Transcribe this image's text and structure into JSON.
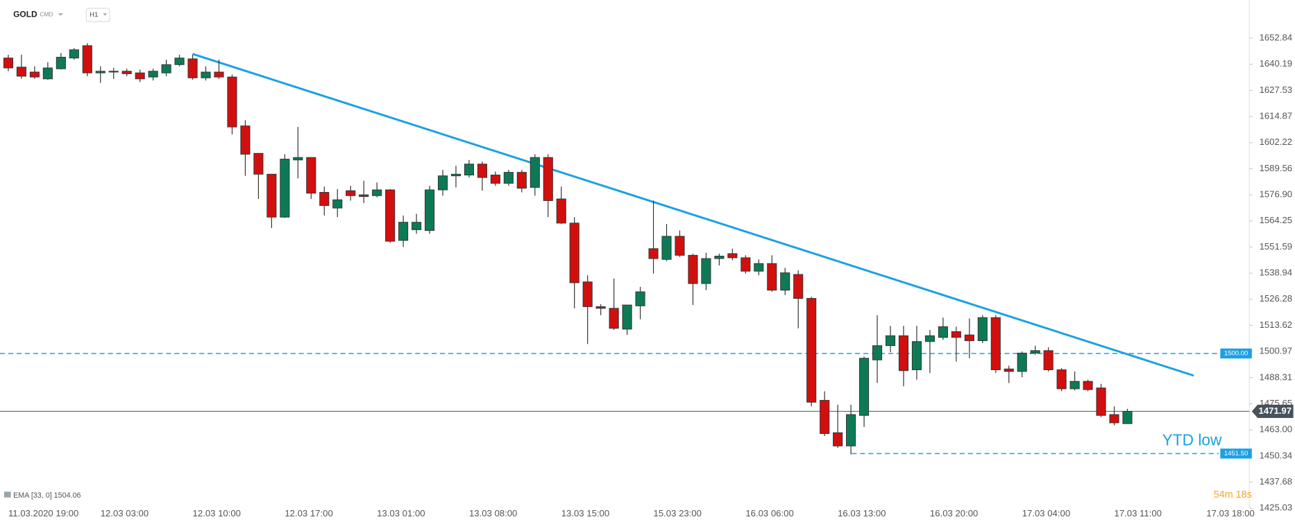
{
  "header": {
    "symbol": "GOLD",
    "type": "CMD",
    "timeframe": "H1"
  },
  "chart_data": {
    "type": "candlestick",
    "categories": [
      "11.03.2020 19:00",
      null,
      null,
      null,
      null,
      null,
      null,
      "12.03 03:00",
      null,
      null,
      null,
      null,
      null,
      null,
      "12.03 10:00",
      null,
      null,
      null,
      null,
      null,
      null,
      "12.03 17:00",
      null,
      null,
      null,
      null,
      null,
      null,
      "13.03 01:00",
      null,
      null,
      null,
      null,
      null,
      null,
      "13.03 08:00",
      null,
      null,
      null,
      null,
      null,
      null,
      "13.03 15:00",
      null,
      null,
      null,
      null,
      null,
      null,
      "15.03 23:00",
      null,
      null,
      null,
      null,
      null,
      null,
      "16.03 06:00",
      null,
      null,
      null,
      null,
      null,
      null,
      "16.03 13:00",
      null,
      null,
      null,
      null,
      null,
      null,
      "16.03 20:00",
      null,
      null,
      null,
      null,
      null,
      null,
      "17.03 04:00",
      null,
      null,
      null,
      null,
      null,
      null,
      "17.03 11:00",
      null,
      null,
      null,
      null,
      null,
      null,
      "17.03 18:00",
      null,
      null,
      null
    ],
    "open": [
      1643.2,
      1638.8,
      1636.4,
      1633.1,
      1638.0,
      1643.2,
      1649.2,
      1636.0,
      1636.4,
      1636.8,
      1636.0,
      1634.0,
      1636.0,
      1640.0,
      1642.8,
      1633.6,
      1636.4,
      1634.0,
      1610.3,
      1597.0,
      1586.9,
      1566.1,
      1593.8,
      1595.0,
      1578.1,
      1570.5,
      1578.9,
      1576.9,
      1576.5,
      1579.3,
      1554.8,
      1560.0,
      1559.6,
      1579.3,
      1586.1,
      1586.5,
      1591.8,
      1586.5,
      1582.5,
      1587.8,
      1580.5,
      1595.0,
      1574.9,
      1563.2,
      1534.7,
      1522.7,
      1521.9,
      1511.8,
      1523.1,
      1550.8,
      1545.6,
      1556.8,
      1547.6,
      1533.9,
      1546.0,
      1548.4,
      1546.4,
      1539.9,
      1543.6,
      1530.7,
      1538.3,
      1526.7,
      1477.3,
      1461.6,
      1455.2,
      1470.0,
      1496.9,
      1503.8,
      1508.6,
      1492.1,
      1505.8,
      1507.8,
      1510.6,
      1509.0,
      1506.2,
      1517.4,
      1492.5,
      1491.3,
      1500.2,
      1501.4,
      1492.1,
      1482.9,
      1486.5,
      1483.3,
      1470.4,
      1466.0,
      null,
      null,
      null,
      null,
      null,
      null,
      null,
      null,
      null
    ],
    "high": [
      1644.8,
      1644.8,
      1639.2,
      1641.2,
      1645.6,
      1648.0,
      1650.4,
      1639.2,
      1638.4,
      1638.0,
      1637.6,
      1638.0,
      1642.4,
      1644.8,
      1644.8,
      1639.2,
      1642.4,
      1635.2,
      1613.1,
      1597.0,
      1586.9,
      1596.6,
      1609.8,
      1595.0,
      1580.9,
      1579.7,
      1581.3,
      1583.7,
      1582.9,
      1579.7,
      1566.9,
      1567.7,
      1581.3,
      1589.0,
      1591.0,
      1593.8,
      1593.0,
      1588.2,
      1589.0,
      1589.0,
      1596.6,
      1596.6,
      1580.9,
      1566.1,
      1537.9,
      1523.9,
      1536.3,
      1523.5,
      1532.3,
      1574.1,
      1562.8,
      1559.6,
      1548.4,
      1548.8,
      1548.4,
      1550.8,
      1547.6,
      1545.6,
      1547.6,
      1541.5,
      1540.3,
      1527.5,
      1481.7,
      1475.2,
      1475.2,
      1498.5,
      1518.6,
      1513.4,
      1513.4,
      1513.4,
      1511.4,
      1517.4,
      1513.0,
      1517.0,
      1518.6,
      1518.6,
      1494.1,
      1501.0,
      1503.8,
      1503.0,
      1492.9,
      1491.3,
      1487.3,
      1485.3,
      1474.4,
      1473.2,
      null,
      null,
      null,
      null,
      null,
      null,
      null,
      null,
      null
    ],
    "low": [
      1636.8,
      1633.1,
      1633.1,
      1632.7,
      1637.6,
      1642.4,
      1634.4,
      1631.1,
      1633.1,
      1634.4,
      1631.5,
      1632.3,
      1634.4,
      1639.2,
      1632.7,
      1632.3,
      1633.1,
      1606.2,
      1586.1,
      1574.9,
      1560.8,
      1565.7,
      1584.9,
      1574.9,
      1566.9,
      1566.1,
      1574.1,
      1572.9,
      1575.7,
      1553.6,
      1551.6,
      1558.0,
      1558.0,
      1576.5,
      1580.5,
      1585.3,
      1578.9,
      1581.3,
      1581.3,
      1578.1,
      1576.5,
      1566.1,
      1562.8,
      1521.9,
      1504.6,
      1518.6,
      1511.4,
      1509.0,
      1516.6,
      1538.7,
      1544.8,
      1546.8,
      1523.5,
      1530.7,
      1542.7,
      1545.2,
      1538.7,
      1537.9,
      1529.9,
      1528.3,
      1512.2,
      1474.4,
      1460.0,
      1454.3,
      1451.1,
      1464.4,
      1485.7,
      1500.6,
      1484.1,
      1487.3,
      1490.5,
      1506.6,
      1496.1,
      1497.7,
      1505.0,
      1490.5,
      1485.7,
      1488.5,
      1499.4,
      1491.3,
      1481.7,
      1482.1,
      1481.7,
      1469.2,
      1465.2,
      1466.0,
      null,
      null,
      null,
      null,
      null,
      null,
      null,
      null,
      null
    ],
    "close": [
      1638.4,
      1634.4,
      1634.0,
      1638.4,
      1643.6,
      1647.2,
      1636.0,
      1636.8,
      1636.8,
      1635.6,
      1633.1,
      1636.8,
      1640.0,
      1643.2,
      1633.6,
      1636.4,
      1634.0,
      1609.8,
      1596.6,
      1586.9,
      1566.1,
      1594.2,
      1595.0,
      1577.7,
      1571.7,
      1574.5,
      1576.5,
      1576.1,
      1579.3,
      1554.4,
      1563.6,
      1563.6,
      1579.3,
      1586.1,
      1586.9,
      1591.8,
      1585.3,
      1582.5,
      1587.8,
      1580.1,
      1595.0,
      1574.1,
      1563.2,
      1534.3,
      1522.7,
      1521.9,
      1512.2,
      1523.5,
      1529.9,
      1546.0,
      1556.8,
      1547.6,
      1533.9,
      1546.0,
      1547.2,
      1546.4,
      1539.9,
      1543.6,
      1530.7,
      1539.1,
      1526.7,
      1476.4,
      1461.2,
      1455.2,
      1470.4,
      1497.7,
      1503.8,
      1508.6,
      1491.7,
      1505.8,
      1508.6,
      1513.0,
      1507.8,
      1506.2,
      1517.4,
      1492.1,
      1491.3,
      1500.2,
      1501.4,
      1492.1,
      1482.9,
      1486.5,
      1482.5,
      1470.0,
      1466.4,
      1471.97,
      null,
      null,
      null,
      null,
      null,
      null,
      null,
      null,
      null
    ],
    "colors": {
      "up": "#0e7a55",
      "down": "#d20f0f",
      "level": "#1ba1e2",
      "price": "#46525c"
    },
    "ylim": [
      1424.2,
      1671.32
    ],
    "yticks": [
      1652.84,
      1640.19,
      1627.53,
      1614.87,
      1602.22,
      1589.56,
      {
        "value": 1576.9,
        "label": "1576.90"
      },
      1564.25,
      1551.59,
      1538.94,
      1526.28,
      1513.62,
      1500.97,
      1488.31,
      1475.65,
      {
        "value": 1463.0,
        "label": "1463.00"
      },
      1450.34,
      1437.68,
      1425.03
    ],
    "levels": [
      {
        "value": 1500.0,
        "label": "1500.00"
      },
      {
        "value": 1451.5,
        "label": "1451.50"
      }
    ],
    "current_price": 1471.97,
    "annotation": "YTD low",
    "indicator": "EMA [33, 0] 1504.06",
    "timer": "54m 18s"
  }
}
